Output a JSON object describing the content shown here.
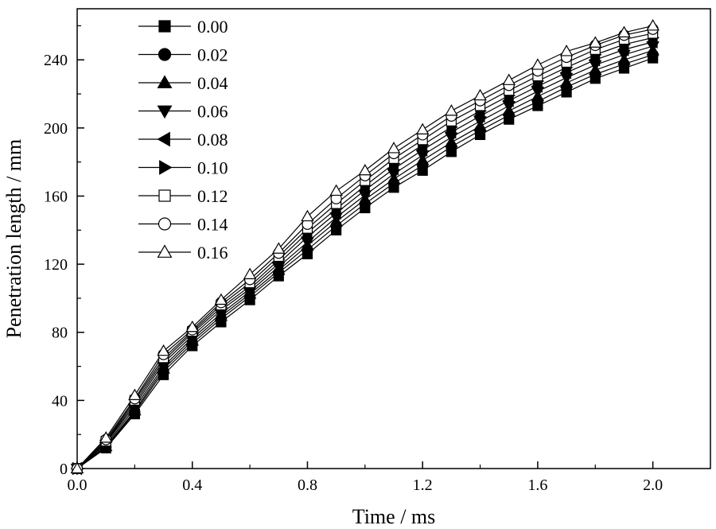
{
  "chart_data": {
    "type": "line",
    "title": "",
    "xlabel": "Time / ms",
    "ylabel": "Penetration length / mm",
    "xlim": [
      0,
      2.2
    ],
    "ylim": [
      0,
      270
    ],
    "xticks": [
      0.0,
      0.4,
      0.8,
      1.2,
      1.6,
      2.0
    ],
    "xtick_labels": [
      "0.0",
      "0.4",
      "0.8",
      "1.2",
      "1.6",
      "2.0"
    ],
    "yticks": [
      0,
      40,
      80,
      120,
      160,
      200,
      240
    ],
    "ytick_labels": [
      "0",
      "40",
      "80",
      "120",
      "160",
      "200",
      "240"
    ],
    "grid": false,
    "legend_position": "top-left",
    "x": [
      0,
      0.1,
      0.2,
      0.3,
      0.4,
      0.5,
      0.6,
      0.7,
      0.8,
      0.9,
      1.0,
      1.1,
      1.2,
      1.3,
      1.4,
      1.5,
      1.6,
      1.7,
      1.8,
      1.9,
      2.0
    ],
    "series": [
      {
        "name": "0.00",
        "marker": "square-filled",
        "values": [
          0,
          12,
          32,
          55,
          72,
          86,
          99,
          113,
          126,
          140,
          153,
          165,
          175,
          186,
          196,
          205,
          213,
          221,
          229,
          235,
          241
        ]
      },
      {
        "name": "0.02",
        "marker": "circle-filled",
        "values": [
          0,
          12.5,
          33,
          57,
          73.5,
          88,
          101,
          115,
          128.5,
          142.5,
          155.5,
          167.5,
          178,
          189,
          198.5,
          207.5,
          215.5,
          224,
          231.5,
          237.5,
          243
        ]
      },
      {
        "name": "0.04",
        "marker": "triangle-up-filled",
        "values": [
          0,
          13,
          34,
          58.5,
          75,
          89.5,
          102.5,
          116.5,
          131,
          145,
          158,
          170,
          181,
          191.5,
          201,
          210,
          218.5,
          226.5,
          234,
          240,
          245.5
        ]
      },
      {
        "name": "0.06",
        "marker": "triangle-down-filled",
        "values": [
          0,
          14,
          35.5,
          60,
          76.5,
          91,
          104,
          118.5,
          133,
          147.5,
          160.5,
          173,
          184,
          194.5,
          204,
          213,
          221.5,
          229.5,
          237,
          243,
          248
        ]
      },
      {
        "name": "0.08",
        "marker": "triangle-left-filled",
        "values": [
          0,
          15,
          37,
          62,
          78,
          93,
          105.5,
          120.5,
          136,
          150,
          163.5,
          176,
          187,
          197.5,
          207,
          216,
          224.5,
          232.5,
          240,
          246,
          250.5
        ]
      },
      {
        "name": "0.10",
        "marker": "triangle-right-filled",
        "values": [
          0,
          15.5,
          38.5,
          63.5,
          79.5,
          94.5,
          107,
          122.5,
          138.5,
          152.5,
          166,
          179,
          190,
          200.5,
          210,
          219,
          227.5,
          235.5,
          243,
          249,
          253
        ]
      },
      {
        "name": "0.12",
        "marker": "square-open",
        "values": [
          0,
          16,
          40,
          65,
          80.5,
          96,
          109,
          124.5,
          141,
          155.5,
          169,
          182,
          193,
          204,
          213,
          222,
          230.5,
          238.5,
          246,
          252,
          255.5
        ]
      },
      {
        "name": "0.14",
        "marker": "circle-open",
        "values": [
          0,
          17,
          41,
          67,
          81.5,
          97.5,
          111,
          126.5,
          143.5,
          158.5,
          172,
          185,
          196,
          207,
          216,
          225,
          233.5,
          241.5,
          248.5,
          254.5,
          258
        ]
      },
      {
        "name": "0.16",
        "marker": "triangle-up-open",
        "values": [
          0,
          18,
          43,
          69,
          83,
          99,
          114,
          129,
          148,
          163,
          175,
          188,
          199,
          210,
          219,
          228,
          237,
          245,
          250,
          256,
          260
        ]
      }
    ]
  }
}
